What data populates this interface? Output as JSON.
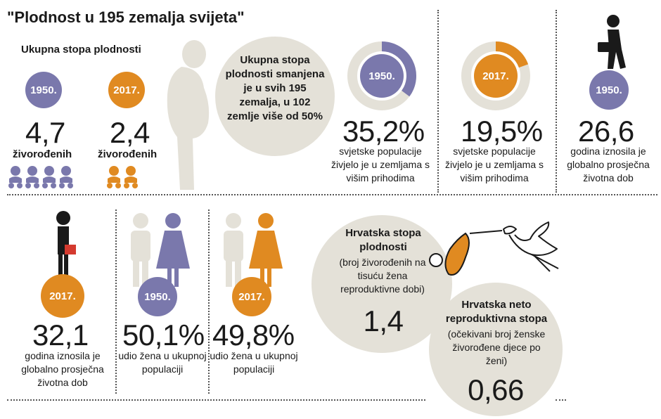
{
  "title": "\"Plodnost u 195 zemalja svijeta\"",
  "fertility": {
    "heading": "Ukupna stopa plodnosti",
    "year_1950": "1950.",
    "year_2017": "2017.",
    "value_1950": "4,7",
    "value_2017": "2,4",
    "label_1950": "živorođenih",
    "label_2017": "živorođenih",
    "colors": {
      "blue": "#7a78ac",
      "orange": "#e08a21"
    }
  },
  "decline_circle": {
    "text": "Ukupna stopa plodnosti smanjena je u svih 195 zemalja, u 102 zemlje više od 50%"
  },
  "high_income": [
    {
      "year": "1950.",
      "value": "35,2%",
      "fraction": 0.352,
      "caption": "svjetske populacije živjelo je u zemljama s višim prihodima"
    },
    {
      "year": "2017.",
      "value": "19,5%",
      "fraction": 0.195,
      "caption": "svjetske populacije živjelo je u zemljama s višim prihodima"
    }
  ],
  "median_age": [
    {
      "year": "1950.",
      "value": "26,6",
      "caption": "godina iznosila je globalno prosječna životna dob"
    },
    {
      "year": "2017.",
      "value": "32,1",
      "caption": "godina iznosila je globalno prosječna životna dob"
    }
  ],
  "women_share": [
    {
      "year": "1950.",
      "value": "50,1%",
      "caption": "udio žena u ukupnoj populaciji"
    },
    {
      "year": "2017.",
      "value": "49,8%",
      "caption": "udio žena u ukupnoj populaciji"
    }
  ],
  "croatia": {
    "fertility_title": "Hrvatska stopa plodnosti",
    "fertility_desc": "(broj živorođenih na tisuću žena reproduktivne dobi)",
    "fertility_value": "1,4",
    "net_title": "Hrvatska neto reproduktivna stopa",
    "net_desc": "(očekivani broj ženske živorođene djece po ženi)",
    "net_value": "0,66"
  }
}
